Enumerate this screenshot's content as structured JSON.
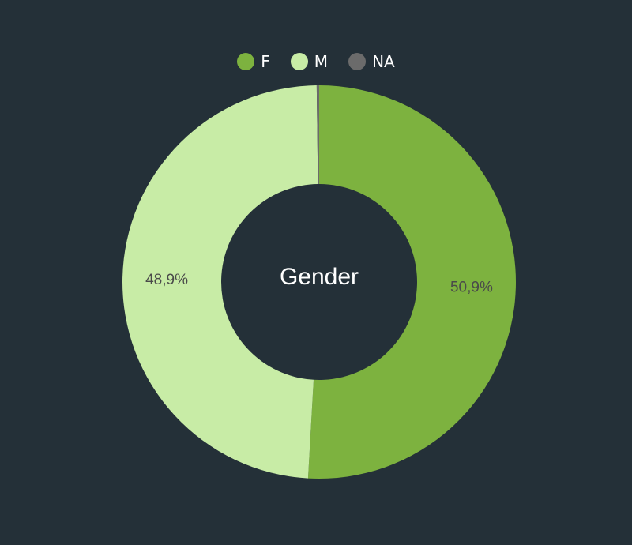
{
  "chart_data": {
    "type": "pie",
    "center_label": "Gender",
    "slices": [
      {
        "name": "F",
        "value": 50.9,
        "label": "50,9%",
        "color": "#7db23f"
      },
      {
        "name": "M",
        "value": 48.9,
        "label": "48,9%",
        "color": "#c8eca6"
      },
      {
        "name": "NA",
        "value": 0.2,
        "label": "",
        "color": "#6b6b6b"
      }
    ],
    "legend_position": "top-center",
    "label_color": "#4a4a4a",
    "center_label_color": "#ffffff",
    "background": "#243038"
  }
}
